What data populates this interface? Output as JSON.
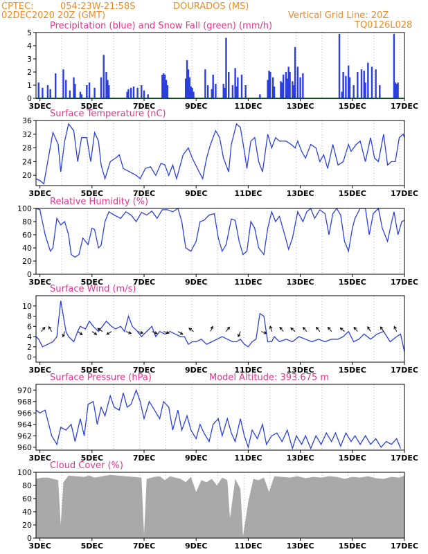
{
  "header": {
    "source": "CPTEC:",
    "coords": "054:23W-21:58S",
    "station": "DOURADOS (MS)",
    "run": "02DEC2020 20Z (GMT)",
    "grid_note": "Vertical Grid Line: 20Z",
    "code": "TQ0126L028"
  },
  "colors": {
    "header": "#f08a24",
    "title": "#e8338a",
    "series": "#2b3fdc",
    "snow": "#1aa23a",
    "cloud": "#a9a9a9"
  },
  "chart_data": [
    {
      "id": "precip",
      "type": "bar",
      "title": "Precipitation (blue) and Snow Fall (green) (mm/h)",
      "ylim": [
        0,
        5
      ],
      "yticks": [
        "0",
        "1",
        "2",
        "3",
        "4",
        "5"
      ],
      "xticks": [
        "3DEC",
        "5DEC",
        "7DEC",
        "9DEC",
        "11DEC",
        "13DEC",
        "15DEC",
        "17DEC"
      ],
      "x_days": [
        2.85,
        17.0
      ],
      "series": [
        {
          "t": [
            2.95,
            3.1,
            3.3,
            3.4,
            3.6,
            3.9,
            4.0,
            4.15,
            4.3,
            4.35,
            4.55,
            4.6,
            4.8,
            4.9,
            5.1,
            5.35,
            5.45,
            5.55,
            5.6,
            5.65,
            6.35,
            6.4,
            6.5,
            6.6,
            6.75,
            6.9,
            7.0,
            7.15,
            7.7,
            7.75,
            7.8,
            7.85,
            7.9,
            8.6,
            8.65,
            8.7,
            8.75,
            8.8,
            8.85,
            8.9,
            9.35,
            9.45,
            9.6,
            9.65,
            9.75,
            10.05,
            10.1,
            10.15,
            10.25,
            10.4,
            10.5,
            10.55,
            10.6,
            10.75,
            10.9,
            11.45,
            11.75,
            11.8,
            11.85,
            11.95,
            12.0,
            12.25,
            12.3,
            12.35,
            12.45,
            12.5,
            12.55,
            12.6,
            12.7,
            12.75,
            12.8,
            12.9,
            13.0,
            13.1,
            14.5,
            14.6,
            14.65,
            14.75,
            14.85,
            14.9,
            15.05,
            15.2,
            15.35,
            15.45,
            15.5,
            15.6,
            15.75,
            15.9,
            16.05,
            16.6,
            16.65,
            16.7,
            16.75
          ],
          "v": [
            1.2,
            0.8,
            1.0,
            0.7,
            1.9,
            2.2,
            1.4,
            0.6,
            1.6,
            1.1,
            0.5,
            0.3,
            1.0,
            1.2,
            0.8,
            1.6,
            3.3,
            2.0,
            1.4,
            1.0,
            0.5,
            0.7,
            0.8,
            0.9,
            0.8,
            1.0,
            0.6,
            0.3,
            1.8,
            1.9,
            1.8,
            1.4,
            1.0,
            1.5,
            2.9,
            2.2,
            1.6,
            0.9,
            0.8,
            0.5,
            2.2,
            1.0,
            0.7,
            1.8,
            1.1,
            1.1,
            0.8,
            4.6,
            2.0,
            1.0,
            2.3,
            0.9,
            1.6,
            1.8,
            1.0,
            0.3,
            1.4,
            2.1,
            2.0,
            1.6,
            0.9,
            1.3,
            1.2,
            1.8,
            2.0,
            1.5,
            2.4,
            2.0,
            1.3,
            1.0,
            3.9,
            2.4,
            1.6,
            1.9,
            4.9,
            0.5,
            2.0,
            1.7,
            2.5,
            1.6,
            1.0,
            2.0,
            2.2,
            2.1,
            1.2,
            2.7,
            2.4,
            2.2,
            1.0,
            4.9,
            1.2,
            1.1,
            1.2
          ]
        },
        {
          "name": "Snow Fall",
          "t": [
            2.85,
            17.0
          ],
          "v": [
            0,
            0
          ]
        }
      ]
    },
    {
      "id": "temp",
      "type": "line",
      "title": "Surface Temperature (nC)",
      "ylim": [
        17,
        36
      ],
      "yticks": [
        "20",
        "24",
        "28",
        "32",
        "36"
      ],
      "xticks": [
        "3DEC",
        "5DEC",
        "7DEC",
        "9DEC",
        "11DEC",
        "13DEC",
        "15DEC",
        "17DEC"
      ],
      "x": [
        2.85,
        3.0,
        3.15,
        3.3,
        3.5,
        3.7,
        3.8,
        3.95,
        4.1,
        4.3,
        4.45,
        4.6,
        4.8,
        4.95,
        5.1,
        5.25,
        5.35,
        5.5,
        5.7,
        5.9,
        6.05,
        6.2,
        6.45,
        6.7,
        6.85,
        7.05,
        7.25,
        7.45,
        7.65,
        7.8,
        7.95,
        8.1,
        8.25,
        8.5,
        8.7,
        8.85,
        9.05,
        9.25,
        9.4,
        9.55,
        9.75,
        9.9,
        10.05,
        10.25,
        10.35,
        10.55,
        10.7,
        10.85,
        10.95,
        11.1,
        11.25,
        11.4,
        11.55,
        11.75,
        11.9,
        12.05,
        12.2,
        12.45,
        12.65,
        12.8,
        12.9,
        13.05,
        13.2,
        13.4,
        13.6,
        13.75,
        13.9,
        14.05,
        14.25,
        14.45,
        14.65,
        14.85,
        14.95,
        15.15,
        15.3,
        15.5,
        15.7,
        15.85,
        16.0,
        16.2,
        16.35,
        16.5,
        16.65,
        16.8,
        16.95,
        17.0
      ],
      "y": [
        19,
        18.5,
        17.5,
        24,
        32.5,
        29,
        21,
        30,
        35,
        33,
        24,
        31,
        31,
        24,
        32.5,
        30,
        23,
        19,
        24,
        25,
        26,
        22,
        21,
        20,
        19,
        22,
        22.5,
        20,
        23.5,
        23,
        20,
        23,
        19,
        26,
        28,
        25,
        22,
        19,
        25,
        29,
        33,
        31,
        25,
        21,
        29,
        35,
        34,
        27,
        22,
        30,
        31,
        24,
        21,
        32,
        28,
        31,
        30,
        30,
        29,
        28,
        30,
        27,
        25,
        29,
        28,
        24,
        26,
        22,
        29,
        23,
        24,
        29,
        27,
        29,
        30,
        24,
        31,
        25,
        24,
        32,
        23,
        24,
        24,
        31,
        32,
        31
      ]
    },
    {
      "id": "rh",
      "type": "line",
      "title": "Relative Humidity (%)",
      "ylim": [
        0,
        100
      ],
      "yticks": [
        "0",
        "20",
        "40",
        "60",
        "80",
        "100"
      ],
      "xticks": [
        "3DEC",
        "5DEC",
        "7DEC",
        "9DEC",
        "11DEC",
        "13DEC",
        "15DEC",
        "17DEC"
      ],
      "x": [
        2.85,
        3.0,
        3.2,
        3.4,
        3.5,
        3.65,
        3.8,
        3.95,
        4.1,
        4.2,
        4.35,
        4.5,
        4.65,
        4.85,
        5.0,
        5.1,
        5.25,
        5.35,
        5.5,
        5.65,
        5.85,
        6.1,
        6.3,
        6.5,
        6.7,
        6.9,
        7.1,
        7.3,
        7.5,
        7.7,
        7.9,
        8.1,
        8.3,
        8.45,
        8.6,
        8.8,
        9.0,
        9.15,
        9.3,
        9.5,
        9.7,
        9.85,
        10.0,
        10.15,
        10.35,
        10.5,
        10.65,
        10.8,
        10.95,
        11.1,
        11.25,
        11.4,
        11.6,
        11.75,
        11.9,
        12.05,
        12.2,
        12.4,
        12.55,
        12.7,
        12.9,
        13.1,
        13.25,
        13.4,
        13.55,
        13.75,
        13.95,
        14.1,
        14.25,
        14.4,
        14.55,
        14.7,
        14.85,
        15.0,
        15.1,
        15.3,
        15.5,
        15.65,
        15.8,
        16.0,
        16.15,
        16.35,
        16.5,
        16.6,
        16.75,
        16.9,
        17.0
      ],
      "y": [
        100,
        98,
        60,
        35,
        40,
        85,
        75,
        80,
        60,
        30,
        26,
        30,
        55,
        45,
        70,
        68,
        40,
        44,
        80,
        95,
        90,
        85,
        95,
        90,
        80,
        94,
        90,
        96,
        85,
        98,
        98,
        95,
        100,
        80,
        40,
        35,
        50,
        80,
        82,
        90,
        92,
        55,
        35,
        45,
        84,
        82,
        50,
        30,
        35,
        80,
        70,
        40,
        30,
        70,
        95,
        80,
        88,
        60,
        38,
        55,
        95,
        80,
        95,
        100,
        85,
        98,
        92,
        60,
        92,
        100,
        90,
        50,
        35,
        70,
        85,
        100,
        100,
        60,
        92,
        100,
        70,
        50,
        78,
        95,
        60,
        80,
        82
      ]
    },
    {
      "id": "wind",
      "type": "line",
      "title": "Surface Wind (m/s)",
      "ylim": [
        -1,
        12
      ],
      "yticks": [
        "0",
        "2",
        "4",
        "6",
        "8",
        "10"
      ],
      "xticks": [
        "3DEC",
        "5DEC",
        "7DEC",
        "9DEC",
        "11DEC",
        "13DEC",
        "15DEC",
        "17DEC"
      ],
      "x": [
        2.85,
        2.95,
        3.1,
        3.3,
        3.5,
        3.65,
        3.8,
        3.9,
        4.0,
        4.1,
        4.3,
        4.45,
        4.55,
        4.75,
        4.9,
        5.05,
        5.25,
        5.4,
        5.55,
        5.75,
        5.9,
        6.1,
        6.25,
        6.4,
        6.55,
        6.75,
        6.9,
        7.1,
        7.3,
        7.45,
        7.6,
        7.8,
        8.0,
        8.2,
        8.4,
        8.55,
        8.7,
        8.85,
        9.0,
        9.2,
        9.4,
        9.6,
        9.8,
        10.0,
        10.2,
        10.4,
        10.55,
        10.7,
        10.85,
        11.0,
        11.15,
        11.3,
        11.45,
        11.6,
        11.75,
        11.9,
        12.0,
        12.2,
        12.45,
        12.7,
        12.95,
        13.2,
        13.45,
        13.7,
        13.95,
        14.2,
        14.45,
        14.65,
        14.85,
        15.05,
        15.25,
        15.45,
        15.7,
        15.95,
        16.2,
        16.45,
        16.7,
        16.85,
        17.0
      ],
      "y": [
        4,
        3.5,
        2,
        2.5,
        3,
        4,
        11,
        8,
        5,
        4,
        3,
        5,
        6,
        5.5,
        7,
        6,
        5,
        6,
        7,
        6,
        5.5,
        6,
        5,
        8,
        6,
        5,
        4,
        5,
        6,
        4,
        5,
        4.5,
        5,
        4.5,
        4,
        4,
        2.5,
        3,
        3,
        3.5,
        2.5,
        3,
        3.5,
        4,
        3.5,
        3,
        3,
        3.5,
        2.5,
        2,
        3,
        3.5,
        8.5,
        8,
        3,
        3,
        4,
        3,
        3.5,
        3,
        4,
        3.5,
        3,
        3.5,
        3,
        3.5,
        3.5,
        4,
        5,
        3,
        3.5,
        4.5,
        3.5,
        4.5,
        5,
        3,
        4,
        4.5,
        1
      ],
      "vectors": {
        "t": [
          3.05,
          3.45,
          3.95,
          4.45,
          5.0,
          5.4,
          5.75,
          6.3,
          6.75,
          7.3,
          7.75,
          8.3,
          8.9,
          9.55,
          10.15,
          10.7,
          11.5,
          11.9,
          12.35,
          12.8,
          13.25,
          13.75,
          14.2,
          14.7,
          15.2,
          15.7,
          16.2,
          16.7
        ],
        "u": [
          1.2,
          -0.8,
          -0.5,
          1.4,
          1.5,
          -1.5,
          -1.3,
          1.6,
          1.6,
          1.5,
          1.5,
          1.2,
          -1.4,
          0.6,
          1.0,
          -0.6,
          1.6,
          -0.4,
          -1.0,
          -1.2,
          -1.0,
          -1.0,
          -1.0,
          -1.2,
          -1.0,
          -0.8,
          -0.8,
          -0.6
        ],
        "v": [
          1.4,
          1.4,
          -1.5,
          -1.0,
          -1.0,
          1.0,
          -0.8,
          -0.6,
          -0.5,
          -0.6,
          -0.5,
          -0.7,
          1.0,
          1.4,
          1.3,
          -1.4,
          -0.6,
          1.5,
          1.2,
          1.0,
          1.1,
          1.2,
          1.2,
          1.0,
          1.2,
          1.3,
          1.2,
          1.3
        ]
      }
    },
    {
      "id": "pres",
      "type": "line",
      "title": "Surface Pressure (hPa)",
      "annotation": "Model Altitude: 393.675 m",
      "ylim": [
        959.5,
        971
      ],
      "yticks": [
        "960",
        "962",
        "964",
        "966",
        "968",
        "970"
      ],
      "xticks": [
        "3DEC",
        "5DEC",
        "7DEC",
        "9DEC",
        "11DEC",
        "13DEC",
        "15DEC",
        "17DEC"
      ],
      "x": [
        2.85,
        3.0,
        3.2,
        3.45,
        3.65,
        3.8,
        4.0,
        4.2,
        4.35,
        4.55,
        4.7,
        4.85,
        5.05,
        5.2,
        5.35,
        5.5,
        5.7,
        5.85,
        6.05,
        6.2,
        6.35,
        6.5,
        6.7,
        6.85,
        7.0,
        7.2,
        7.4,
        7.6,
        7.75,
        7.95,
        8.1,
        8.3,
        8.45,
        8.65,
        8.8,
        9.0,
        9.15,
        9.3,
        9.5,
        9.65,
        9.85,
        10.0,
        10.2,
        10.35,
        10.5,
        10.7,
        10.85,
        11.0,
        11.15,
        11.35,
        11.55,
        11.7,
        11.9,
        12.1,
        12.3,
        12.5,
        12.7,
        12.85,
        13.05,
        13.2,
        13.4,
        13.6,
        13.8,
        14.0,
        14.2,
        14.35,
        14.55,
        14.75,
        14.95,
        15.1,
        15.3,
        15.5,
        15.7,
        15.9,
        16.1,
        16.3,
        16.5,
        16.7,
        16.85
      ],
      "y": [
        966.5,
        966,
        966.5,
        962,
        960.5,
        963.5,
        963,
        964,
        961,
        965,
        962,
        967.5,
        968,
        964,
        967,
        965.5,
        969,
        967,
        966.5,
        969.5,
        967,
        967.5,
        970,
        968,
        965,
        968,
        966.5,
        965,
        968,
        967,
        963,
        966.5,
        963,
        965.5,
        963,
        961.5,
        964,
        962.5,
        961,
        964,
        965,
        962,
        965,
        962.5,
        961,
        965,
        962,
        960,
        963,
        961.5,
        964,
        960.5,
        962,
        962.5,
        961,
        963,
        959.8,
        962,
        960.5,
        962,
        959.8,
        962,
        960.5,
        962.5,
        961,
        962.5,
        960.2,
        962.5,
        961,
        962,
        960.5,
        962,
        960.5,
        961.5,
        960,
        961,
        960.5,
        961.5,
        959.8
      ]
    },
    {
      "id": "cloud",
      "type": "area",
      "title": "Cloud Cover (%)",
      "ylim": [
        0,
        100
      ],
      "yticks": [
        "0",
        "20",
        "40",
        "60",
        "80",
        "100"
      ],
      "xticks": [
        "3DEC",
        "5DEC",
        "7DEC",
        "9DEC",
        "11DEC",
        "13DEC",
        "15DEC",
        "17DEC"
      ],
      "x": [
        2.85,
        3.1,
        3.3,
        3.5,
        3.7,
        3.8,
        3.9,
        4.1,
        4.4,
        4.7,
        4.9,
        5.1,
        5.4,
        5.7,
        6.0,
        6.3,
        6.6,
        6.9,
        7.0,
        7.1,
        7.4,
        7.6,
        7.8,
        8.0,
        8.2,
        8.4,
        8.6,
        8.8,
        9.0,
        9.2,
        9.4,
        9.6,
        9.8,
        10.0,
        10.2,
        10.3,
        10.5,
        10.7,
        10.8,
        11.0,
        11.2,
        11.4,
        11.6,
        11.8,
        12.0,
        12.3,
        12.6,
        12.9,
        13.2,
        13.5,
        13.8,
        14.1,
        14.4,
        14.7,
        15.0,
        15.3,
        15.6,
        15.9,
        16.2,
        16.5,
        16.8,
        17.0
      ],
      "y": [
        90,
        92,
        92,
        90,
        88,
        20,
        85,
        95,
        94,
        93,
        95,
        92,
        94,
        96,
        95,
        94,
        93,
        92,
        5,
        90,
        93,
        94,
        88,
        94,
        92,
        90,
        85,
        93,
        70,
        88,
        85,
        90,
        80,
        92,
        88,
        30,
        90,
        75,
        3,
        55,
        90,
        88,
        92,
        70,
        94,
        93,
        92,
        94,
        91,
        93,
        92,
        94,
        93,
        90,
        93,
        92,
        94,
        91,
        90,
        93,
        92,
        95
      ]
    }
  ]
}
